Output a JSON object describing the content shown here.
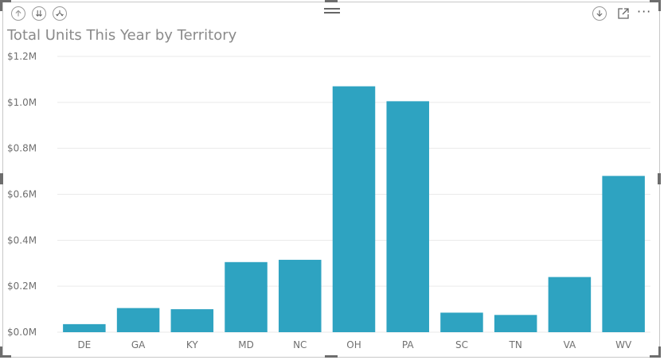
{
  "visual": {
    "title": "Total Units This Year by Territory",
    "icons": {
      "drill_up": "arrow-up-icon",
      "expand_all": "double-arrow-down-icon",
      "expand_next": "fork-arrow-icon",
      "drill_mode": "arrow-down-circle-icon",
      "focus": "focus-mode-icon",
      "more": "more-options-icon",
      "drag": "drag-handle-icon"
    },
    "more_label": "···"
  },
  "colors": {
    "bar": "#2ea3c1",
    "grid": "#eaeaea",
    "axis_text": "#707070",
    "title": "#8a8a8a"
  },
  "chart_data": {
    "type": "bar",
    "title": "Total Units This Year by Territory",
    "xlabel": "",
    "ylabel": "",
    "categories": [
      "DE",
      "GA",
      "KY",
      "MD",
      "NC",
      "OH",
      "PA",
      "SC",
      "TN",
      "VA",
      "WV"
    ],
    "values": [
      35000,
      105000,
      100000,
      305000,
      315000,
      1070000,
      1005000,
      85000,
      75000,
      240000,
      680000
    ],
    "ylim": [
      0,
      1200000
    ],
    "yticks": [
      0,
      200000,
      400000,
      600000,
      800000,
      1000000,
      1200000
    ],
    "ytick_labels": [
      "$0.0M",
      "$0.2M",
      "$0.4M",
      "$0.6M",
      "$0.8M",
      "$1.0M",
      "$1.2M"
    ],
    "grid": true,
    "legend": "none"
  }
}
